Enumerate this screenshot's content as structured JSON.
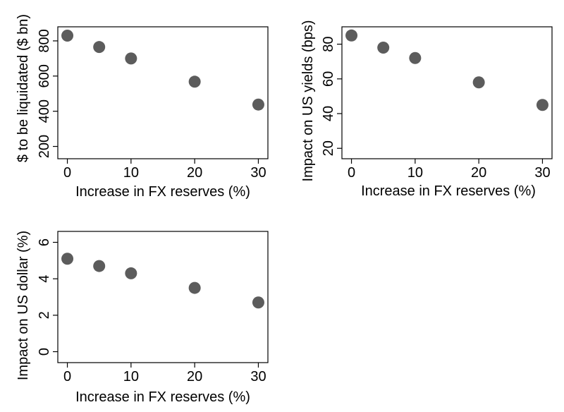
{
  "chart_data": [
    {
      "type": "scatter",
      "xlabel": "Increase in FX reserves (%)",
      "ylabel": "$ to be liquidated ($ bn)",
      "xticks": [
        0,
        10,
        20,
        30
      ],
      "yticks": [
        200,
        400,
        600,
        800
      ],
      "xlim": [
        -1.5,
        31.5
      ],
      "ylim": [
        130,
        880
      ],
      "x": [
        0,
        5,
        10,
        20,
        30
      ],
      "y": [
        830,
        765,
        700,
        568,
        438
      ],
      "marker_color": "#5c5c5c"
    },
    {
      "type": "scatter",
      "xlabel": "Increase in FX reserves (%)",
      "ylabel": "Impact on US yields (bps)",
      "xticks": [
        0,
        10,
        20,
        30
      ],
      "yticks": [
        20,
        40,
        60,
        80
      ],
      "xlim": [
        -1.5,
        31.5
      ],
      "ylim": [
        14,
        90
      ],
      "x": [
        0,
        5,
        10,
        20,
        30
      ],
      "y": [
        85,
        78,
        72,
        58,
        45
      ],
      "marker_color": "#5c5c5c"
    },
    {
      "type": "scatter",
      "xlabel": "Increase in FX reserves (%)",
      "ylabel": "Impact on US dollar (%)",
      "xticks": [
        0,
        10,
        20,
        30
      ],
      "yticks": [
        0,
        2,
        4,
        6
      ],
      "xlim": [
        -1.5,
        31.5
      ],
      "ylim": [
        -0.6,
        6.6
      ],
      "x": [
        0,
        5,
        10,
        20,
        30
      ],
      "y": [
        5.1,
        4.7,
        4.3,
        3.5,
        2.7
      ],
      "marker_color": "#5c5c5c"
    }
  ]
}
